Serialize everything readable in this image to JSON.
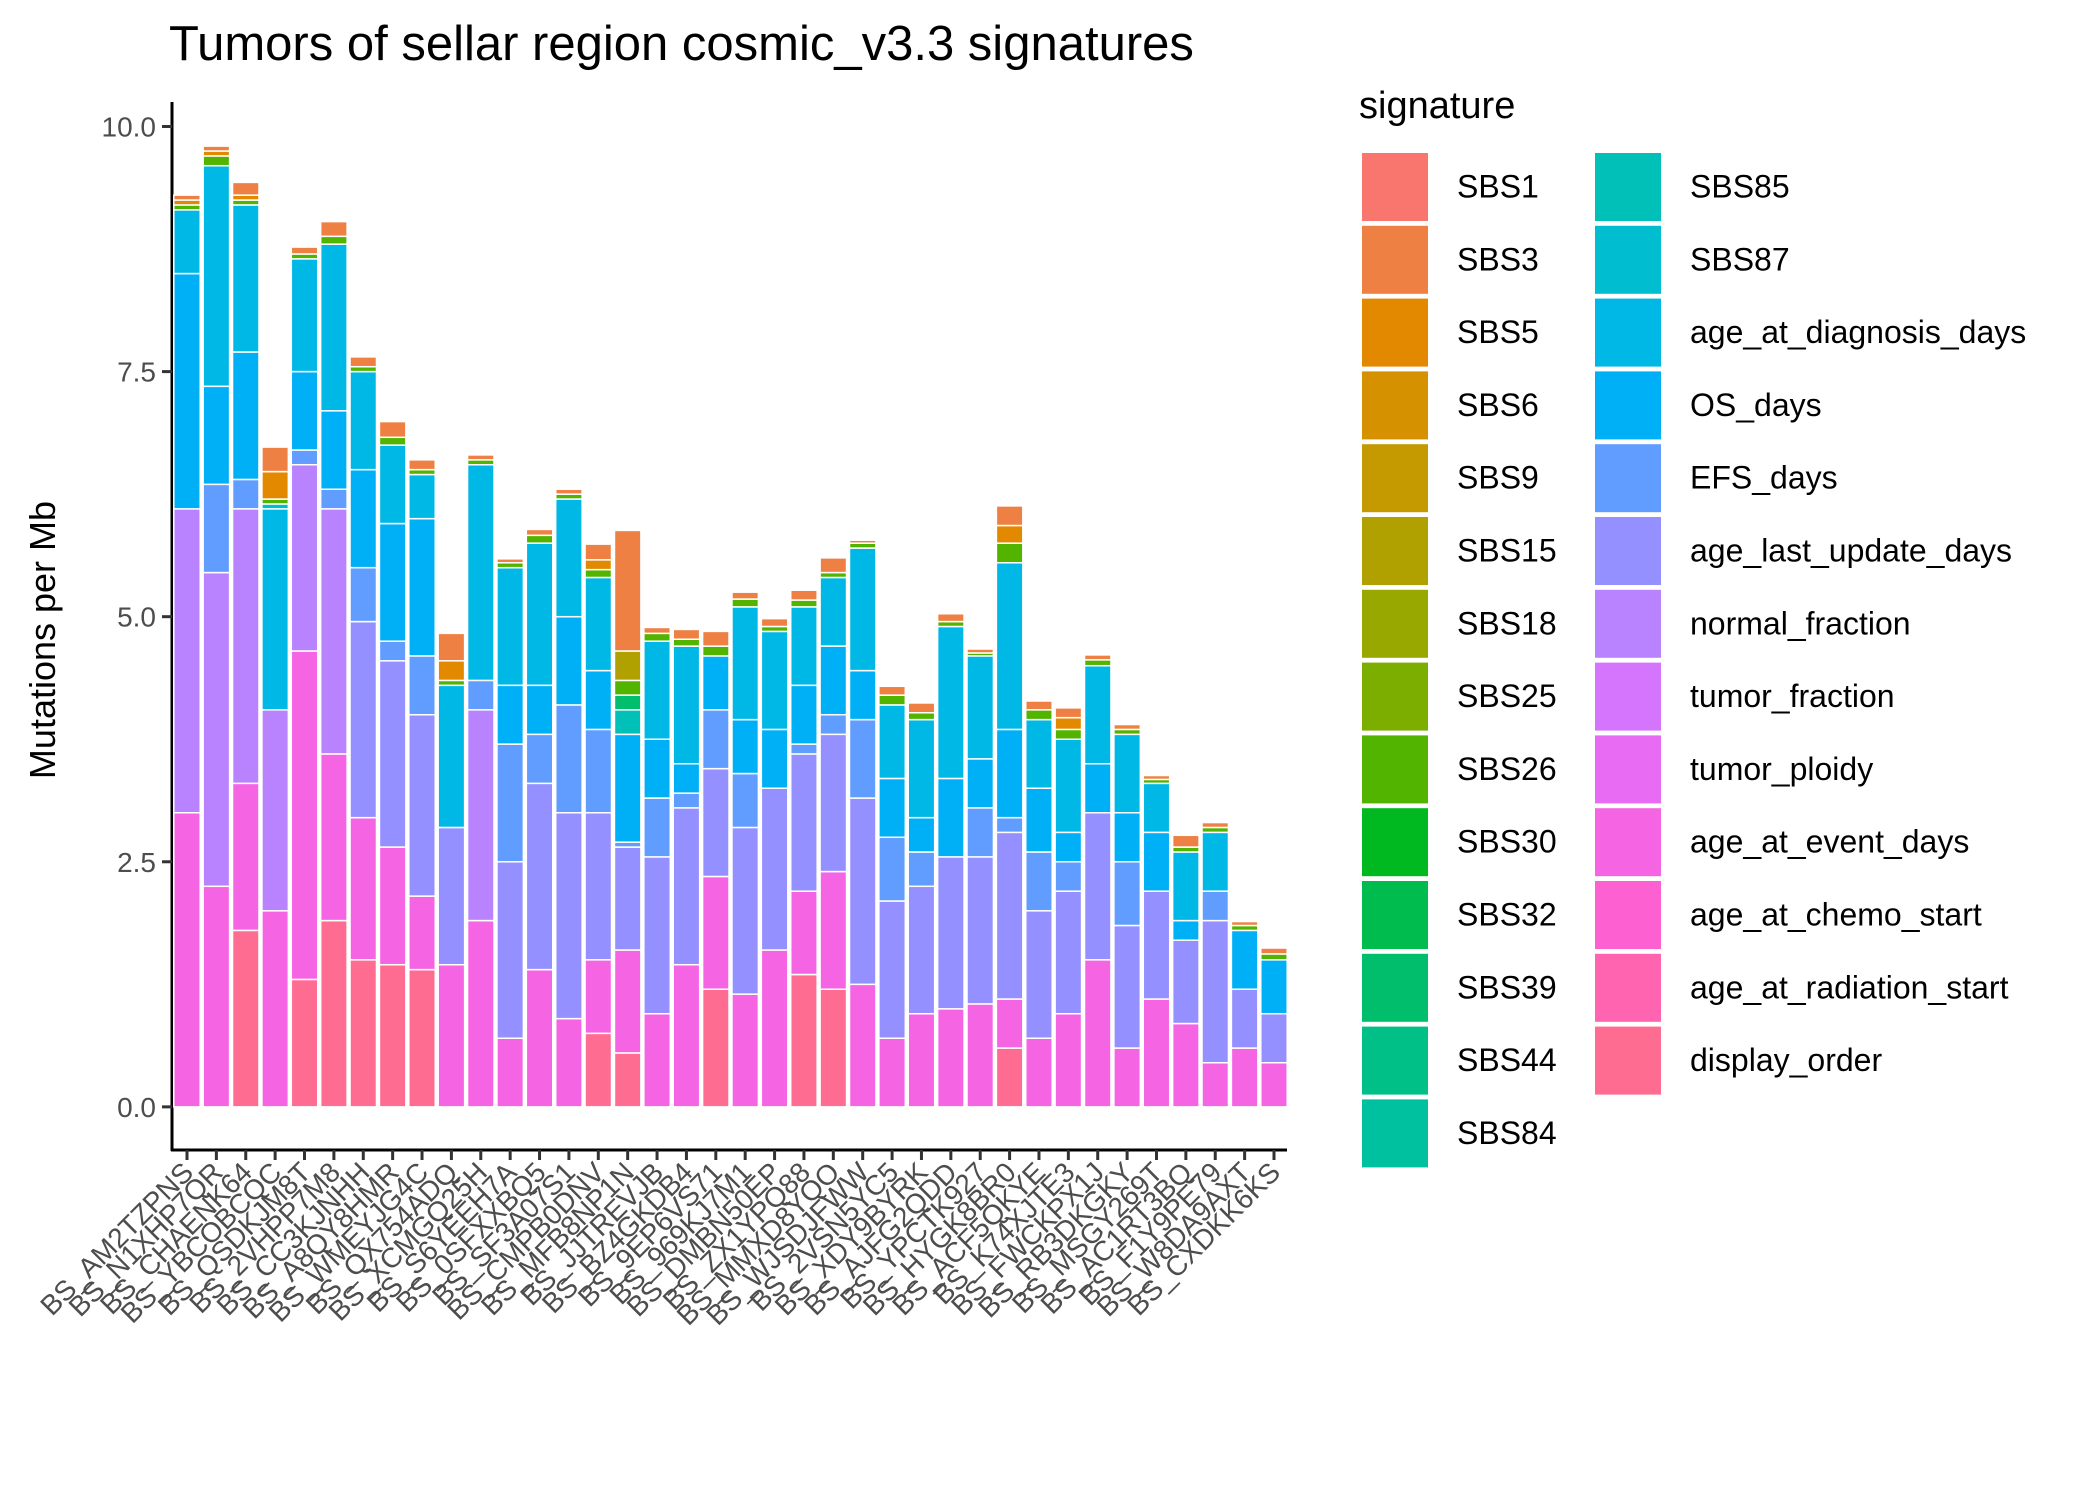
{
  "chart_data": {
    "type": "stacked_bar",
    "title": "Tumors of sellar region cosmic_v3.3 signatures",
    "y_label": "Mutations per Mb",
    "legend_title": "signature",
    "legend_position": "right",
    "grid": false,
    "ylim": [
      -0.44,
      10.25
    ],
    "yticks": [
      {
        "value": 0,
        "label": "0.0"
      },
      2.5,
      {
        "value": 5,
        "label": "5.0"
      },
      7.5,
      {
        "value": 10,
        "label": "10.0"
      }
    ],
    "categories": [
      "BS_AM2TZPNS",
      "BS_N1XHP7QR",
      "BS_CHAENK64",
      "BS_YBCOBCQC",
      "BS_QSDKJM8T",
      "BS_2VHPP7M8",
      "BS_CC3KJNHH",
      "BS_A8QY8HMR",
      "BS_WMEYJG4C",
      "BS_QX754ADQ",
      "BS_XCMGQ25H",
      "BS_S6YEEH7A",
      "BS_0SFXXBQ5",
      "BS_SF3A07S1",
      "BS_CMPB0DNV",
      "BS_MFB8NP1N",
      "BS_JJTREVJB",
      "BS_BZ4GKDB4",
      "BS_9EP6VS71",
      "BS_969KJ7M1",
      "BS_DMBN50EP",
      "BS_ZX1YPQ88",
      "BS_MMXD8YQO",
      "BS_WJSDJFWW",
      "BS_2VSN5YC5",
      "BS_XDY9BYRK",
      "BS_AJFG2QDD",
      "BS_YPCTK927",
      "BS_HYGK8BR0",
      "BS_ACF5QKYE",
      "BS_K74XJTE3",
      "BS_FWCKPX1J",
      "BS_RB3DKGKY",
      "BS_MSGY269T",
      "BS_AC1RT3BQ",
      "BS_F1Y9PE79",
      "BS_W8DA9AXT",
      "BS_CXDKK6KS"
    ],
    "series": [
      {
        "name": "SBS1",
        "color": "#F8766D",
        "values": [
          0,
          0,
          0,
          0,
          0,
          0,
          0,
          0,
          0,
          0,
          0,
          0,
          0,
          0,
          0,
          0,
          0,
          0,
          0,
          0,
          0,
          0,
          0,
          0,
          0,
          0,
          0,
          0,
          0,
          0,
          0,
          0,
          0,
          0,
          0,
          0,
          0,
          0
        ]
      },
      {
        "name": "SBS3",
        "color": "#EE8044",
        "values": [
          0.05,
          0.05,
          0.13,
          0.25,
          0.07,
          0.15,
          0.1,
          0.16,
          0.1,
          0.28,
          0.05,
          0.04,
          0.06,
          0.05,
          0.16,
          1.23,
          0.06,
          0.1,
          0.15,
          0.07,
          0.08,
          0.1,
          0.15,
          0.03,
          0.09,
          0.1,
          0.08,
          0.04,
          0.2,
          0.09,
          0.1,
          0.05,
          0.05,
          0.04,
          0.12,
          0.05,
          0.04,
          0.06
        ]
      },
      {
        "name": "SBS5",
        "color": "#E38900",
        "values": [
          0.05,
          0.05,
          0.05,
          0.28,
          0,
          0,
          0,
          0,
          0,
          0.2,
          0,
          0,
          0,
          0,
          0.1,
          0,
          0,
          0,
          0,
          0,
          0,
          0,
          0,
          0,
          0,
          0,
          0,
          0,
          0.18,
          0,
          0.12,
          0,
          0,
          0,
          0,
          0,
          0,
          0
        ]
      },
      {
        "name": "SBS6",
        "color": "#D59100",
        "values": [
          0,
          0,
          0,
          0,
          0,
          0,
          0,
          0,
          0,
          0,
          0,
          0,
          0,
          0,
          0,
          0,
          0,
          0,
          0,
          0,
          0,
          0,
          0,
          0,
          0,
          0,
          0,
          0,
          0,
          0,
          0,
          0,
          0,
          0,
          0,
          0,
          0,
          0
        ]
      },
      {
        "name": "SBS9",
        "color": "#C49A00",
        "values": [
          0,
          0,
          0,
          0,
          0,
          0,
          0,
          0,
          0,
          0,
          0,
          0,
          0,
          0,
          0,
          0,
          0,
          0,
          0,
          0,
          0,
          0,
          0,
          0,
          0,
          0,
          0,
          0,
          0,
          0,
          0,
          0,
          0,
          0,
          0,
          0,
          0,
          0
        ]
      },
      {
        "name": "SBS15",
        "color": "#B0A100",
        "values": [
          0,
          0,
          0,
          0,
          0,
          0,
          0,
          0,
          0,
          0,
          0,
          0,
          0,
          0,
          0,
          0.3,
          0,
          0,
          0,
          0,
          0,
          0,
          0,
          0,
          0,
          0,
          0,
          0,
          0,
          0,
          0,
          0,
          0,
          0,
          0,
          0,
          0,
          0
        ]
      },
      {
        "name": "SBS18",
        "color": "#99A800",
        "values": [
          0,
          0,
          0,
          0,
          0,
          0,
          0,
          0,
          0,
          0,
          0,
          0,
          0,
          0,
          0,
          0,
          0,
          0,
          0,
          0,
          0,
          0,
          0,
          0,
          0,
          0,
          0,
          0,
          0,
          0,
          0,
          0,
          0,
          0,
          0,
          0,
          0,
          0
        ]
      },
      {
        "name": "SBS25",
        "color": "#7CAE00",
        "values": [
          0,
          0,
          0,
          0,
          0,
          0,
          0,
          0,
          0,
          0,
          0,
          0,
          0,
          0,
          0,
          0,
          0,
          0,
          0,
          0,
          0,
          0,
          0,
          0,
          0,
          0,
          0,
          0,
          0,
          0,
          0,
          0,
          0,
          0,
          0,
          0,
          0,
          0
        ]
      },
      {
        "name": "SBS26",
        "color": "#53B400",
        "values": [
          0.05,
          0.1,
          0.05,
          0.05,
          0.05,
          0.08,
          0.05,
          0.08,
          0.05,
          0.05,
          0.05,
          0.05,
          0.08,
          0.05,
          0.08,
          0.15,
          0.08,
          0.07,
          0.1,
          0.08,
          0.05,
          0.07,
          0.05,
          0.05,
          0.1,
          0.07,
          0.05,
          0.03,
          0.2,
          0.1,
          0.1,
          0.06,
          0.05,
          0.04,
          0.05,
          0.05,
          0.05,
          0.06
        ]
      },
      {
        "name": "SBS30",
        "color": "#00B81F",
        "values": [
          0,
          0,
          0,
          0,
          0,
          0,
          0,
          0,
          0,
          0,
          0,
          0,
          0,
          0,
          0,
          0,
          0,
          0,
          0,
          0,
          0,
          0,
          0,
          0,
          0,
          0,
          0,
          0,
          0,
          0,
          0,
          0,
          0,
          0,
          0,
          0,
          0,
          0
        ]
      },
      {
        "name": "SBS32",
        "color": "#00BB4E",
        "values": [
          0,
          0,
          0,
          0,
          0,
          0,
          0,
          0,
          0,
          0,
          0,
          0,
          0,
          0,
          0,
          0,
          0,
          0,
          0,
          0,
          0,
          0,
          0,
          0,
          0,
          0,
          0,
          0,
          0,
          0,
          0,
          0,
          0,
          0,
          0,
          0,
          0,
          0
        ]
      },
      {
        "name": "SBS39",
        "color": "#00BE6C",
        "values": [
          0,
          0,
          0,
          0,
          0,
          0,
          0,
          0,
          0,
          0,
          0,
          0,
          0,
          0,
          0,
          0.15,
          0,
          0,
          0,
          0,
          0,
          0,
          0,
          0,
          0,
          0,
          0,
          0,
          0,
          0,
          0,
          0,
          0,
          0,
          0,
          0,
          0,
          0
        ]
      },
      {
        "name": "SBS44",
        "color": "#00C087",
        "values": [
          0,
          0,
          0,
          0,
          0,
          0,
          0,
          0,
          0,
          0,
          0,
          0,
          0,
          0,
          0,
          0,
          0,
          0,
          0,
          0,
          0,
          0,
          0,
          0,
          0,
          0,
          0,
          0,
          0,
          0,
          0,
          0,
          0,
          0,
          0,
          0,
          0,
          0
        ]
      },
      {
        "name": "SBS84",
        "color": "#00C19F",
        "values": [
          0,
          0,
          0,
          0,
          0,
          0,
          0,
          0,
          0,
          0,
          0,
          0,
          0,
          0,
          0,
          0,
          0,
          0,
          0,
          0,
          0,
          0,
          0,
          0,
          0,
          0,
          0,
          0,
          0,
          0,
          0,
          0,
          0,
          0,
          0,
          0,
          0,
          0
        ]
      },
      {
        "name": "SBS85",
        "color": "#00C0B8",
        "values": [
          0,
          0,
          0,
          0,
          0,
          0,
          0,
          0,
          0,
          0,
          0,
          0,
          0,
          0,
          0,
          0.25,
          0,
          0,
          0,
          0,
          0,
          0,
          0,
          0,
          0,
          0,
          0,
          0,
          0,
          0,
          0,
          0,
          0,
          0,
          0,
          0,
          0,
          0
        ]
      },
      {
        "name": "SBS87",
        "color": "#00BDD0",
        "values": [
          0,
          0,
          0,
          0.05,
          0,
          0,
          0,
          0,
          0,
          0,
          0,
          0,
          0,
          0,
          0,
          0,
          0,
          0,
          0,
          0,
          0,
          0,
          0,
          0,
          0,
          0,
          0,
          0,
          0,
          0,
          0,
          0,
          0,
          0,
          0,
          0,
          0,
          0
        ]
      },
      {
        "name": "age_at_diagnosis_days",
        "color": "#00B8E5",
        "values": [
          0.65,
          2.25,
          1.5,
          2.05,
          1.15,
          1.7,
          1.0,
          0.8,
          0.45,
          1.45,
          2.2,
          1.2,
          1.45,
          1.2,
          0.95,
          0,
          1.0,
          1.2,
          0,
          1.15,
          1.0,
          0.8,
          0.7,
          1.25,
          0.75,
          1.0,
          1.55,
          1.05,
          1.7,
          0.7,
          0.95,
          1.0,
          0.8,
          0.5,
          0.7,
          0.6,
          0,
          0
        ]
      },
      {
        "name": "OS_days",
        "color": "#00B0F6",
        "values": [
          2.4,
          1.0,
          1.3,
          0,
          0.8,
          0.8,
          1.0,
          1.2,
          1.4,
          0,
          0,
          0.6,
          0.5,
          0.9,
          0.6,
          1.1,
          0.6,
          0.3,
          0.55,
          0.55,
          0.6,
          0.6,
          0.7,
          0.5,
          0.6,
          0.35,
          0.8,
          0.5,
          0.9,
          0.65,
          0.3,
          0.5,
          0.5,
          0.6,
          0.2,
          0,
          0.6,
          0.55
        ]
      },
      {
        "name": "EFS_days",
        "color": "#619CFF",
        "values": [
          0,
          0.9,
          0.3,
          0,
          0.15,
          0.2,
          0.55,
          0.2,
          0.6,
          0,
          0.3,
          1.2,
          0.5,
          1.1,
          0.85,
          0.05,
          0.6,
          0.15,
          0.6,
          0.55,
          0,
          0.1,
          0.2,
          0.8,
          0.65,
          0.35,
          0,
          0.5,
          0.15,
          0.6,
          0.3,
          0,
          0.65,
          0,
          0,
          0.3,
          0,
          0
        ]
      },
      {
        "name": "age_last_update_days",
        "color": "#9590FF",
        "values": [
          0,
          0,
          0,
          0,
          0,
          0,
          2.0,
          1.9,
          1.85,
          1.4,
          0,
          1.8,
          1.9,
          2.1,
          1.5,
          1.05,
          1.6,
          1.6,
          1.1,
          1.7,
          1.65,
          1.4,
          1.4,
          1.9,
          1.4,
          1.3,
          1.55,
          1.5,
          1.7,
          1.3,
          1.25,
          1.5,
          1.25,
          1.1,
          0.85,
          1.45,
          0.6,
          0.5
        ]
      },
      {
        "name": "normal_fraction",
        "color": "#B983FF",
        "values": [
          3.1,
          3.2,
          2.8,
          2.05,
          1.9,
          2.5,
          0,
          0,
          0,
          0,
          2.15,
          0,
          0,
          0,
          0,
          0,
          0,
          0,
          0,
          0,
          0,
          0,
          0,
          0,
          0,
          0,
          0,
          0,
          0,
          0,
          0,
          0,
          0,
          0,
          0,
          0,
          0,
          0
        ]
      },
      {
        "name": "tumor_fraction",
        "color": "#D575FE",
        "values": [
          0,
          0,
          0,
          0,
          0,
          0,
          0,
          0,
          0,
          0,
          0,
          0,
          0,
          0,
          0,
          0,
          0,
          0,
          0,
          0,
          0,
          0,
          0,
          0,
          0,
          0,
          0,
          0,
          0,
          0,
          0,
          0,
          0,
          0,
          0,
          0,
          0,
          0
        ]
      },
      {
        "name": "tumor_ploidy",
        "color": "#E76BF3",
        "values": [
          0,
          0,
          0,
          0,
          0,
          0,
          0,
          0,
          0,
          0,
          0,
          0,
          0,
          0,
          0,
          0,
          0,
          0,
          0,
          0,
          0,
          0,
          0,
          0,
          0,
          0,
          0,
          0,
          0,
          0,
          0,
          0,
          0,
          0,
          0,
          0,
          0,
          0
        ]
      },
      {
        "name": "age_at_event_days",
        "color": "#F564E3",
        "values": [
          3.0,
          2.25,
          1.5,
          2.0,
          3.35,
          1.7,
          1.45,
          1.2,
          0.75,
          1.45,
          1.9,
          0.7,
          1.4,
          0.9,
          0.75,
          1.05,
          0.95,
          1.45,
          1.15,
          1.15,
          1.6,
          0.85,
          1.2,
          1.25,
          0.7,
          0.95,
          1.0,
          1.05,
          0.5,
          0.7,
          0.95,
          1.5,
          0.6,
          1.1,
          0.85,
          0.45,
          0.6,
          0.45
        ]
      },
      {
        "name": "age_at_chemo_start",
        "color": "#FD61D1",
        "values": [
          0,
          0,
          0,
          0,
          0,
          0,
          0,
          0,
          0,
          0,
          0,
          0,
          0,
          0,
          0,
          0,
          0,
          0,
          0,
          0,
          0,
          0,
          0,
          0,
          0,
          0,
          0,
          0,
          0,
          0,
          0,
          0,
          0,
          0,
          0,
          0,
          0,
          0
        ]
      },
      {
        "name": "age_at_radiation_start",
        "color": "#FF64B0",
        "values": [
          0,
          0,
          0,
          0,
          0,
          0,
          0,
          0,
          0,
          0,
          0,
          0,
          0,
          0,
          0,
          0,
          0,
          0,
          0,
          0,
          0,
          0,
          0,
          0,
          0,
          0,
          0,
          0,
          0,
          0,
          0,
          0,
          0,
          0,
          0,
          0,
          0,
          0
        ]
      },
      {
        "name": "display_order",
        "color": "#FF6C91",
        "values": [
          0,
          0,
          1.8,
          0,
          1.3,
          1.9,
          1.5,
          1.45,
          1.4,
          0,
          0,
          0,
          0,
          0,
          0.75,
          0.55,
          0,
          0,
          1.2,
          0,
          0,
          1.35,
          1.2,
          0,
          0,
          0,
          0,
          0,
          0.6,
          0,
          0,
          0,
          0,
          0,
          0,
          0,
          0,
          0
        ]
      }
    ]
  }
}
